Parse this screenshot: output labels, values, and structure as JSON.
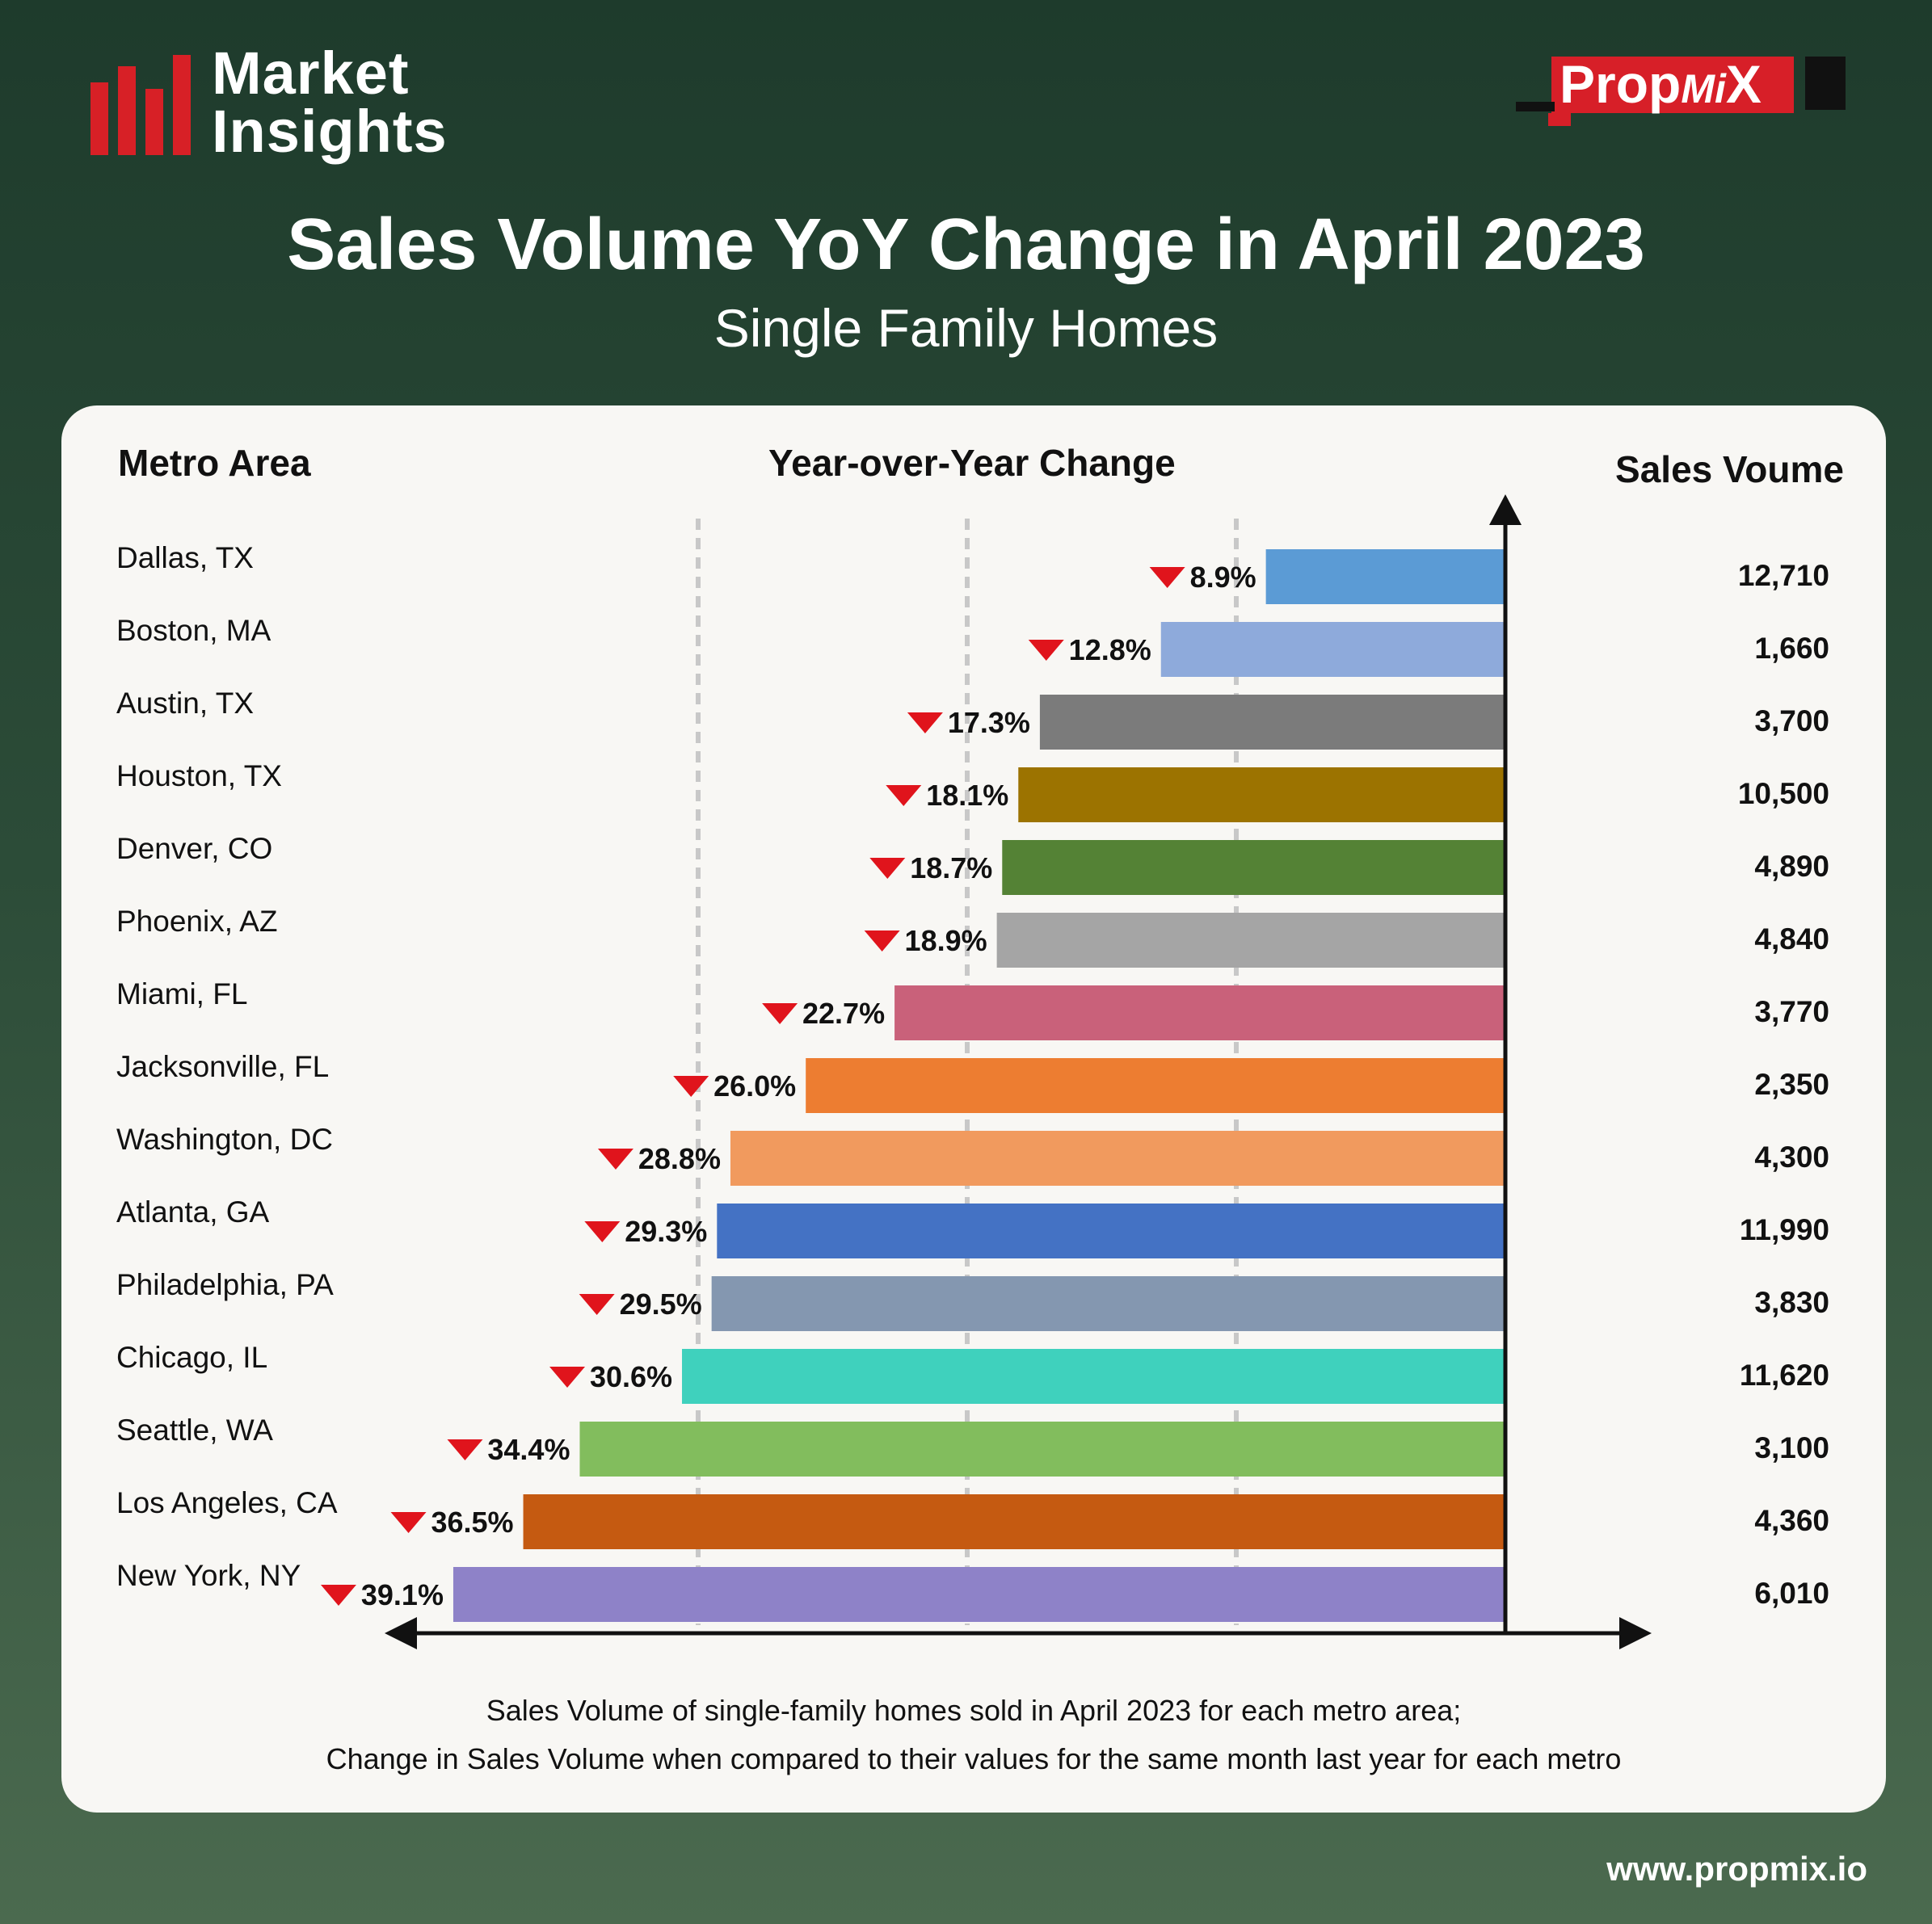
{
  "brand": {
    "line1": "Market",
    "line2": "Insights"
  },
  "partner_logo": {
    "text_main": "Prop",
    "text_mi": "Mi",
    "text_x": "X"
  },
  "header": {
    "title": "Sales Volume YoY Change in April 2023",
    "subtitle": "Single Family Homes"
  },
  "columns": {
    "metro": "Metro Area",
    "change": "Year-over-Year Change",
    "volume": "Sales Voume"
  },
  "footnote": {
    "line1": "Sales Volume of single-family homes sold in April 2023 for each metro area;",
    "line2": "Change in Sales Volume when compared to their values for the same month last year for each metro"
  },
  "website": "www.propmix.io",
  "colors": {
    "down_arrow": "#e0141c",
    "background": "#254532"
  },
  "chart_data": {
    "type": "bar",
    "orientation": "horizontal",
    "direction": "decrease",
    "categories": [
      "Dallas, TX",
      "Boston, MA",
      "Austin, TX",
      "Houston, TX",
      "Denver, CO",
      "Phoenix, AZ",
      "Miami, FL",
      "Jacksonville, FL",
      "Washington, DC",
      "Atlanta, GA",
      "Philadelphia, PA",
      "Chicago, IL",
      "Seattle, WA",
      "Los Angeles, CA",
      "New York, NY"
    ],
    "values": [
      8.9,
      12.8,
      17.3,
      18.1,
      18.7,
      18.9,
      22.7,
      26.0,
      28.8,
      29.3,
      29.5,
      30.6,
      34.4,
      36.5,
      39.1
    ],
    "labels": [
      "8.9%",
      "12.8%",
      "17.3%",
      "18.1%",
      "18.7%",
      "18.9%",
      "22.7%",
      "26.0%",
      "28.8%",
      "29.3%",
      "29.5%",
      "30.6%",
      "34.4%",
      "36.5%",
      "39.1%"
    ],
    "sales_volume": [
      "12,710",
      "1,660",
      "3,700",
      "10,500",
      "4,890",
      "4,840",
      "3,770",
      "2,350",
      "4,300",
      "11,990",
      "3,830",
      "11,620",
      "3,100",
      "4,360",
      "6,010"
    ],
    "bar_colors": [
      "#5b9bd5",
      "#8eaadb",
      "#7b7b7b",
      "#9c7300",
      "#548235",
      "#a5a5a5",
      "#c9617a",
      "#ed7d31",
      "#f19a5e",
      "#4472c4",
      "#8497b0",
      "#3fd1bd",
      "#82bd5d",
      "#c55a11",
      "#8e82c8"
    ],
    "xlim": [
      0,
      40
    ],
    "grid": true
  }
}
